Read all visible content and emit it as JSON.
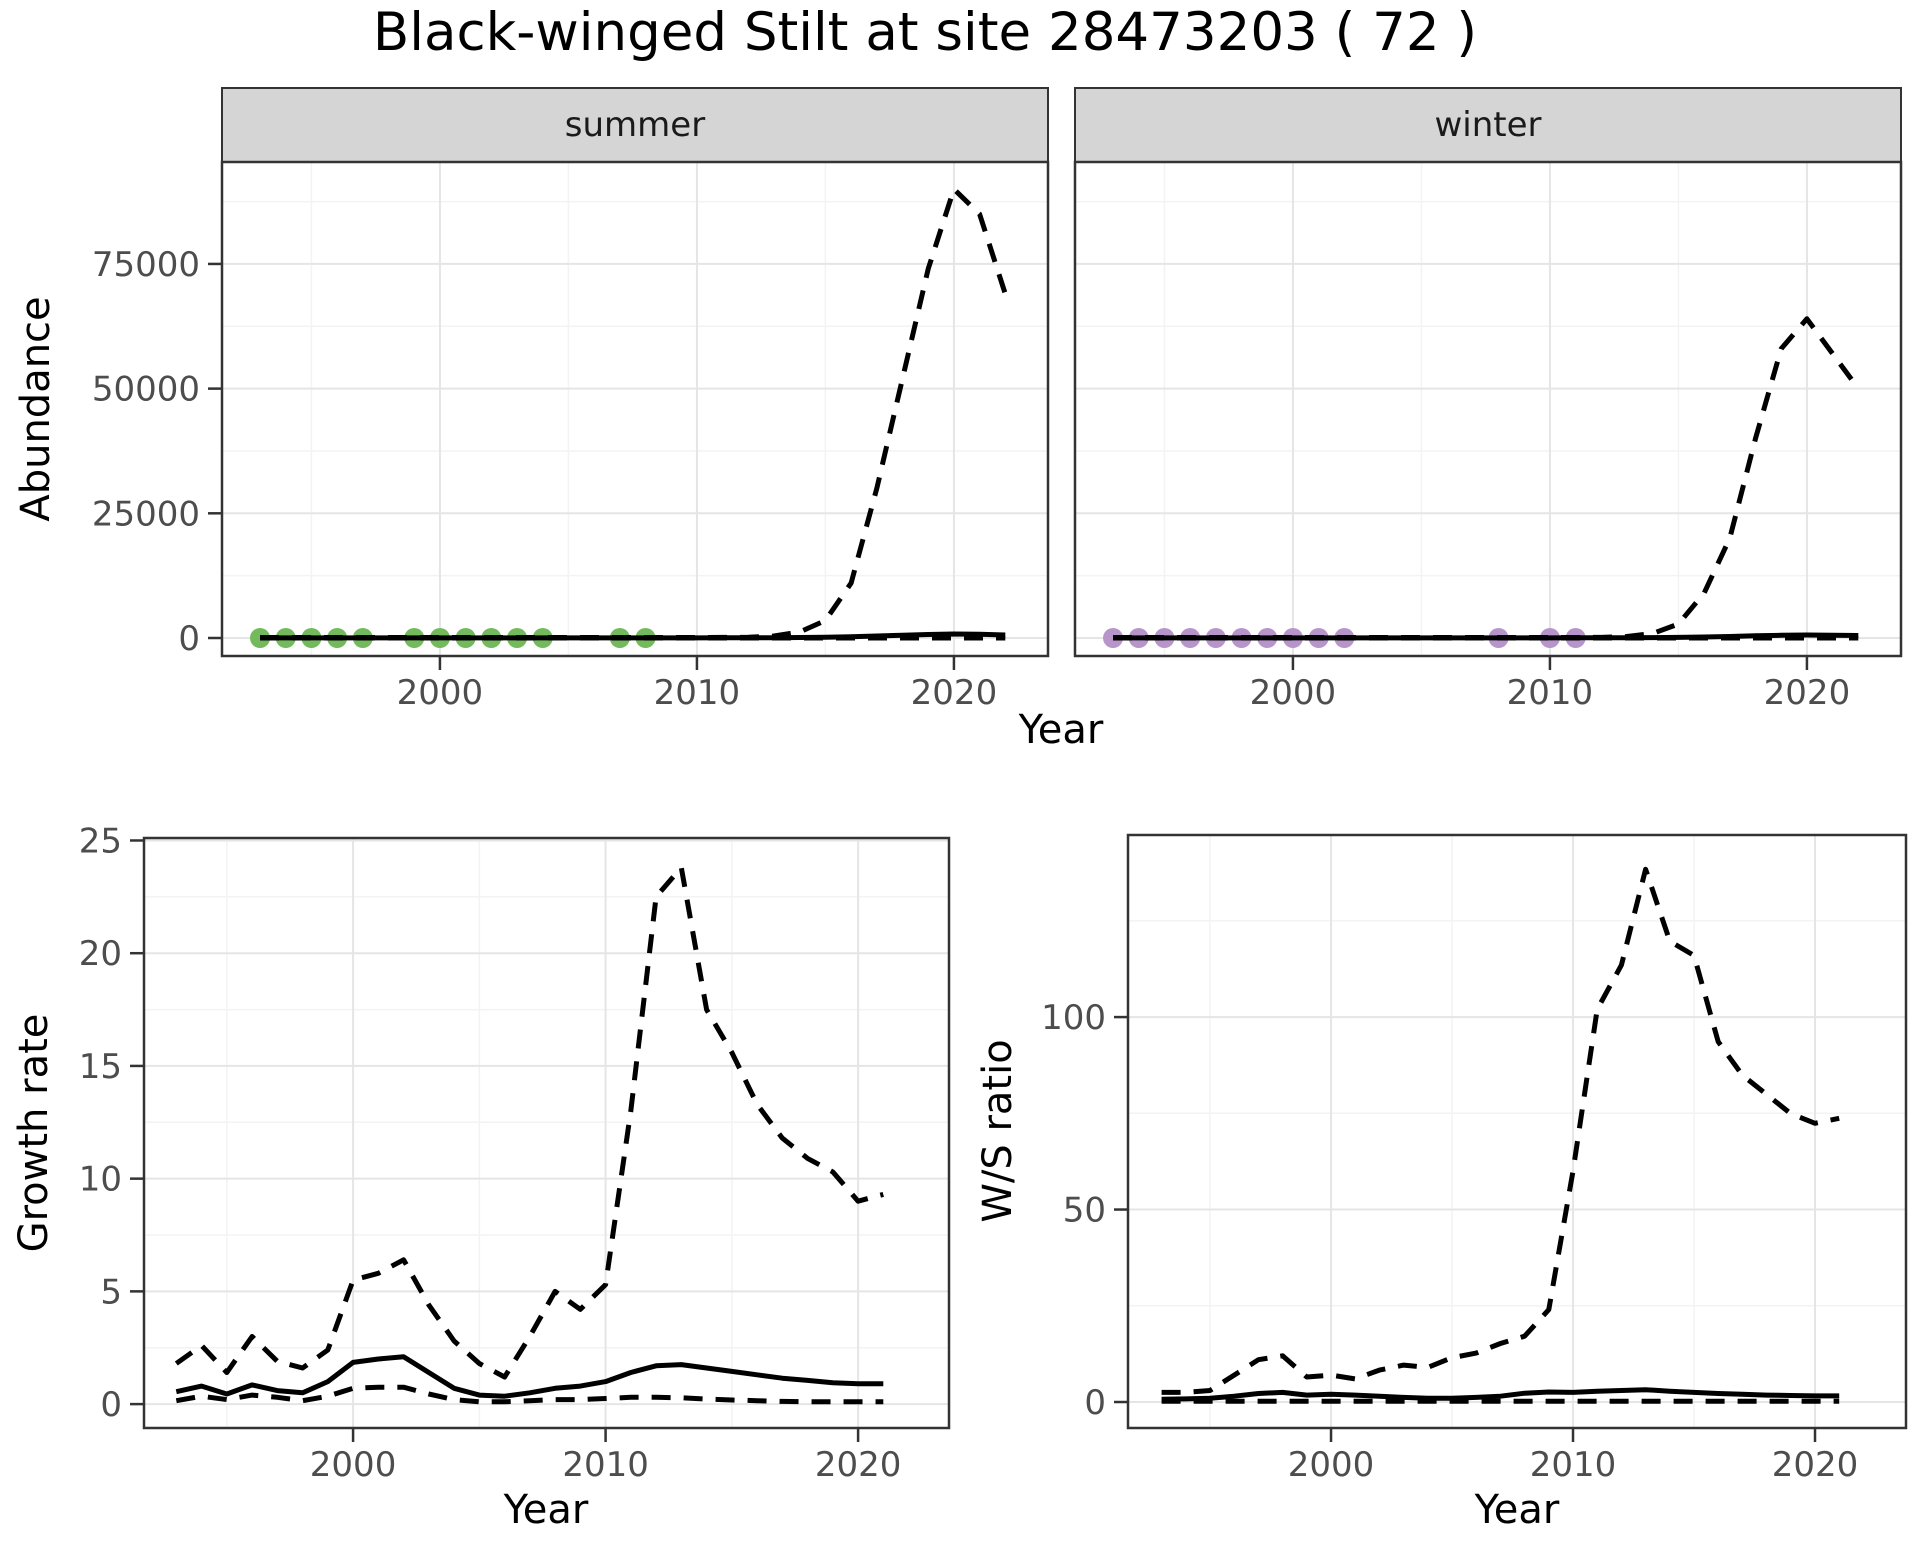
{
  "title": "Black-winged Stilt at site 28473203 ( 72 )",
  "labels": {
    "y_abundance": "Abundance",
    "x_year": "Year",
    "y_growth": "Growth rate",
    "y_ws": "W/S ratio"
  },
  "facets": [
    {
      "label": "summer"
    },
    {
      "label": "winter"
    }
  ],
  "colors": {
    "line": "#000000",
    "summer_dot": "#72BA5C",
    "winter_dot": "#B795CB",
    "strip_bg": "#D5D5D5",
    "panel_bg": "#FFFFFF",
    "panel_border": "#333333",
    "grid_major": "#E5E5E5",
    "grid_minor": "#F3F3F3",
    "tick_text": "#4d4d4d"
  },
  "chart_data": [
    {
      "id": "abundance-summer",
      "type": "line",
      "strip": "summer",
      "xlabel": "Year",
      "ylabel": "Abundance",
      "xlim": [
        1991.52,
        2023.66
      ],
      "ylim": [
        -3609,
        95438
      ],
      "x_ticks": [
        2000,
        2010,
        2020
      ],
      "y_ticks": [
        0,
        25000,
        50000,
        75000
      ],
      "x": [
        1993,
        1994,
        1995,
        1996,
        1997,
        1998,
        1999,
        2000,
        2001,
        2002,
        2003,
        2004,
        2005,
        2006,
        2007,
        2008,
        2009,
        2010,
        2011,
        2012,
        2013,
        2014,
        2015,
        2016,
        2017,
        2018,
        2019,
        2020,
        2021,
        2022
      ],
      "series": [
        {
          "name": "upper_ci",
          "linetype": "dashed",
          "values": [
            100,
            100,
            100,
            100,
            100,
            100,
            100,
            100,
            100,
            100,
            100,
            100,
            100,
            100,
            100,
            100,
            100,
            100,
            120,
            150,
            400,
            1200,
            3500,
            11000,
            30000,
            52000,
            74000,
            90000,
            85000,
            69000
          ]
        },
        {
          "name": "mean",
          "linetype": "solid",
          "values": [
            30,
            30,
            30,
            30,
            30,
            30,
            30,
            30,
            30,
            30,
            30,
            30,
            30,
            30,
            30,
            30,
            30,
            30,
            40,
            50,
            60,
            100,
            150,
            250,
            400,
            550,
            700,
            800,
            750,
            600
          ]
        },
        {
          "name": "lower_ci",
          "linetype": "dashed",
          "values": [
            5,
            5,
            5,
            5,
            5,
            5,
            5,
            5,
            5,
            5,
            5,
            5,
            5,
            5,
            5,
            5,
            5,
            5,
            5,
            5,
            5,
            5,
            5,
            5,
            5,
            5,
            5,
            5,
            5,
            5
          ]
        }
      ],
      "points": {
        "name": "observed-count",
        "color": "#72BA5C",
        "radius": 10,
        "value": 0,
        "years": [
          1993,
          1994,
          1995,
          1996,
          1997,
          1999,
          2000,
          2001,
          2002,
          2003,
          2004,
          2007,
          2008
        ]
      }
    },
    {
      "id": "abundance-winter",
      "type": "line",
      "strip": "winter",
      "xlabel": "Year",
      "ylabel": "Abundance",
      "xlim": [
        1991.52,
        2023.66
      ],
      "ylim": [
        -3609,
        95438
      ],
      "x_ticks": [
        2000,
        2010,
        2020
      ],
      "y_ticks": [
        0,
        25000,
        50000,
        75000
      ],
      "x": [
        1993,
        1994,
        1995,
        1996,
        1997,
        1998,
        1999,
        2000,
        2001,
        2002,
        2003,
        2004,
        2005,
        2006,
        2007,
        2008,
        2009,
        2010,
        2011,
        2012,
        2013,
        2014,
        2015,
        2016,
        2017,
        2018,
        2019,
        2020,
        2021,
        2022
      ],
      "series": [
        {
          "name": "upper_ci",
          "linetype": "dashed",
          "values": [
            100,
            100,
            100,
            100,
            100,
            100,
            100,
            100,
            100,
            100,
            100,
            100,
            100,
            100,
            100,
            100,
            100,
            100,
            110,
            130,
            300,
            900,
            2800,
            9000,
            20000,
            40000,
            58000,
            64000,
            57000,
            50000
          ]
        },
        {
          "name": "mean",
          "linetype": "solid",
          "values": [
            30,
            30,
            30,
            30,
            30,
            30,
            30,
            30,
            30,
            30,
            30,
            30,
            30,
            30,
            30,
            30,
            30,
            30,
            35,
            45,
            60,
            80,
            120,
            200,
            300,
            450,
            550,
            600,
            570,
            500
          ]
        },
        {
          "name": "lower_ci",
          "linetype": "dashed",
          "values": [
            5,
            5,
            5,
            5,
            5,
            5,
            5,
            5,
            5,
            5,
            5,
            5,
            5,
            5,
            5,
            5,
            5,
            5,
            5,
            5,
            5,
            5,
            5,
            5,
            5,
            5,
            5,
            5,
            5,
            5
          ]
        }
      ],
      "points": {
        "name": "observed-count",
        "color": "#B795CB",
        "radius": 10,
        "value": 0,
        "years": [
          1993,
          1994,
          1995,
          1996,
          1997,
          1998,
          1999,
          2000,
          2001,
          2002,
          2008,
          2010,
          2011
        ]
      }
    },
    {
      "id": "growth-rate",
      "type": "line",
      "strip": "",
      "xlabel": "Year",
      "ylabel": "Growth rate",
      "xlim": [
        1991.72,
        2023.6
      ],
      "ylim": [
        -1.06,
        25.11
      ],
      "x_ticks": [
        2000,
        2010,
        2020
      ],
      "y_ticks": [
        0,
        5,
        10,
        15,
        20,
        25
      ],
      "x": [
        1993,
        1994,
        1995,
        1996,
        1997,
        1998,
        1999,
        2000,
        2001,
        2002,
        2003,
        2004,
        2005,
        2006,
        2007,
        2008,
        2009,
        2010,
        2011,
        2012,
        2013,
        2014,
        2015,
        2016,
        2017,
        2018,
        2019,
        2020,
        2021
      ],
      "series": [
        {
          "name": "upper_ci",
          "linetype": "dashed",
          "values": [
            1.8,
            2.6,
            1.4,
            3.0,
            1.9,
            1.6,
            2.4,
            5.5,
            5.8,
            6.4,
            4.4,
            2.8,
            1.8,
            1.2,
            3.0,
            5.0,
            4.2,
            5.3,
            13.0,
            22.5,
            23.8,
            17.5,
            15.6,
            13.3,
            11.8,
            10.9,
            10.3,
            9.0,
            9.3
          ]
        },
        {
          "name": "mean",
          "linetype": "solid",
          "values": [
            0.55,
            0.8,
            0.45,
            0.85,
            0.6,
            0.5,
            1.0,
            1.85,
            2.0,
            2.1,
            1.4,
            0.7,
            0.4,
            0.35,
            0.5,
            0.7,
            0.8,
            1.0,
            1.4,
            1.7,
            1.75,
            1.6,
            1.45,
            1.3,
            1.15,
            1.05,
            0.95,
            0.9,
            0.9
          ]
        },
        {
          "name": "lower_ci",
          "linetype": "dashed",
          "values": [
            0.15,
            0.35,
            0.2,
            0.4,
            0.3,
            0.15,
            0.35,
            0.7,
            0.75,
            0.75,
            0.45,
            0.2,
            0.1,
            0.1,
            0.15,
            0.2,
            0.2,
            0.25,
            0.3,
            0.3,
            0.28,
            0.22,
            0.18,
            0.15,
            0.12,
            0.1,
            0.1,
            0.1,
            0.1
          ]
        }
      ],
      "points": null
    },
    {
      "id": "ws-ratio",
      "type": "line",
      "strip": "",
      "xlabel": "Year",
      "ylabel": "W/S ratio",
      "xlim": [
        1991.61,
        2023.76
      ],
      "ylim": [
        -6.75,
        147.3
      ],
      "x_ticks": [
        2000,
        2010,
        2020
      ],
      "y_ticks": [
        0,
        50,
        100
      ],
      "x": [
        1993,
        1994,
        1995,
        1996,
        1997,
        1998,
        1999,
        2000,
        2001,
        2002,
        2003,
        2004,
        2005,
        2006,
        2007,
        2008,
        2009,
        2010,
        2011,
        2012,
        2013,
        2014,
        2015,
        2016,
        2017,
        2018,
        2019,
        2020,
        2021
      ],
      "series": [
        {
          "name": "upper_ci",
          "linetype": "dashed",
          "values": [
            2.5,
            2.5,
            3.0,
            7.0,
            11.0,
            12.0,
            6.5,
            7.0,
            6.0,
            8.3,
            9.6,
            9.0,
            11.5,
            12.7,
            15.2,
            17.1,
            24.0,
            60.0,
            102.0,
            113.5,
            138.4,
            119.7,
            116.0,
            93.6,
            84.9,
            79.9,
            74.9,
            72.4,
            73.7
          ]
        },
        {
          "name": "mean",
          "linetype": "solid",
          "values": [
            0.7,
            0.8,
            1.0,
            1.5,
            2.2,
            2.5,
            1.8,
            2.0,
            1.8,
            1.5,
            1.2,
            1.0,
            1.0,
            1.2,
            1.5,
            2.3,
            2.6,
            2.5,
            2.8,
            3.0,
            3.2,
            2.8,
            2.5,
            2.2,
            2.0,
            1.8,
            1.7,
            1.6,
            1.6
          ]
        },
        {
          "name": "lower_ci",
          "linetype": "dashed",
          "values": [
            0.2,
            0.2,
            0.2,
            0.2,
            0.2,
            0.2,
            0.2,
            0.2,
            0.2,
            0.2,
            0.2,
            0.2,
            0.2,
            0.2,
            0.2,
            0.2,
            0.2,
            0.2,
            0.2,
            0.2,
            0.2,
            0.2,
            0.2,
            0.2,
            0.2,
            0.2,
            0.2,
            0.2,
            0.2
          ]
        }
      ],
      "points": null
    }
  ]
}
